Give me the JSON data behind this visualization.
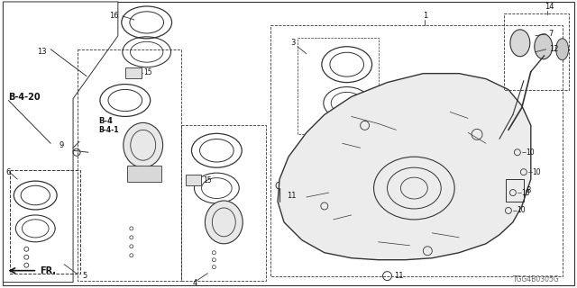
{
  "bg_color": "#ffffff",
  "line_color": "#333333",
  "text_color": "#111111",
  "part_number_label": "TGG4B0305G",
  "diagram_code": "B-4-20",
  "fr_label": "FR."
}
